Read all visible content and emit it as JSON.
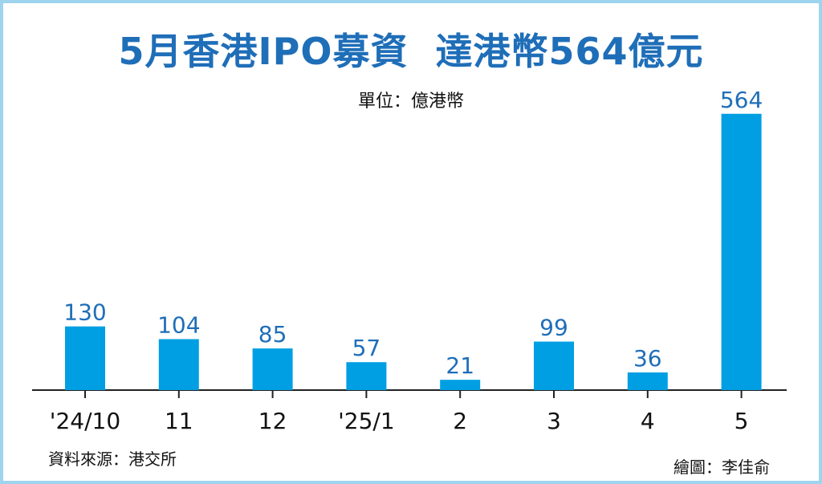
{
  "header": {
    "title": "5月香港IPO募資  達港幣564億元",
    "unit": "單位：億港幣"
  },
  "footer": {
    "source": "資料來源：港交所",
    "credit": "繪圖：李佳俞"
  },
  "colors": {
    "bar": "#009fe3",
    "value_label": "#1f6eb8",
    "title": "#1f6eb8",
    "frame": "#9fd4ee",
    "axis": "#222222"
  },
  "chart_data": {
    "type": "bar",
    "title": "5月香港IPO募資  達港幣564億元",
    "ylabel": "單位：億港幣",
    "xlabel": "",
    "categories": [
      "'24/10",
      "11",
      "12",
      "'25/1",
      "2",
      "3",
      "4",
      "5"
    ],
    "values": [
      130,
      104,
      85,
      57,
      21,
      99,
      36,
      564
    ],
    "ylim": [
      0,
      600
    ],
    "grid": false,
    "legend": "none"
  }
}
